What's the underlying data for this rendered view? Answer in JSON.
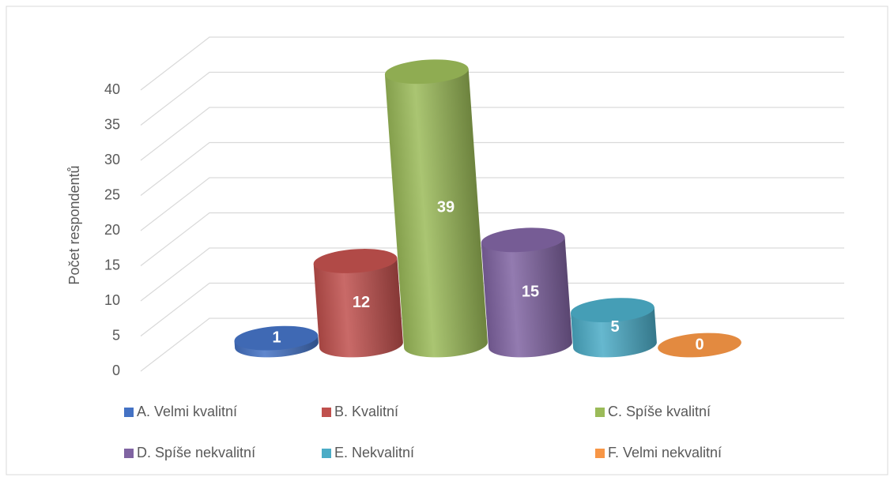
{
  "chart_data": {
    "type": "bar3d",
    "y_axis_label": "Počet respondentů",
    "categories": [
      "A. Velmi kvalitní",
      "B. Kvalitní",
      "C. Spíše kvalitní",
      "D. Spíše nekvalitní",
      "E. Nekvalitní",
      "F. Velmi nekvalitní"
    ],
    "values": [
      1,
      12,
      39,
      15,
      5,
      0
    ],
    "colors": [
      "#4472c4",
      "#c0504d",
      "#9bbb59",
      "#8064a2",
      "#4bacc6",
      "#f79646"
    ],
    "ylim": [
      0,
      40
    ],
    "yticks": [
      0,
      5,
      10,
      15,
      20,
      25,
      30,
      35,
      40
    ],
    "grid": true,
    "legend": "bottom"
  }
}
